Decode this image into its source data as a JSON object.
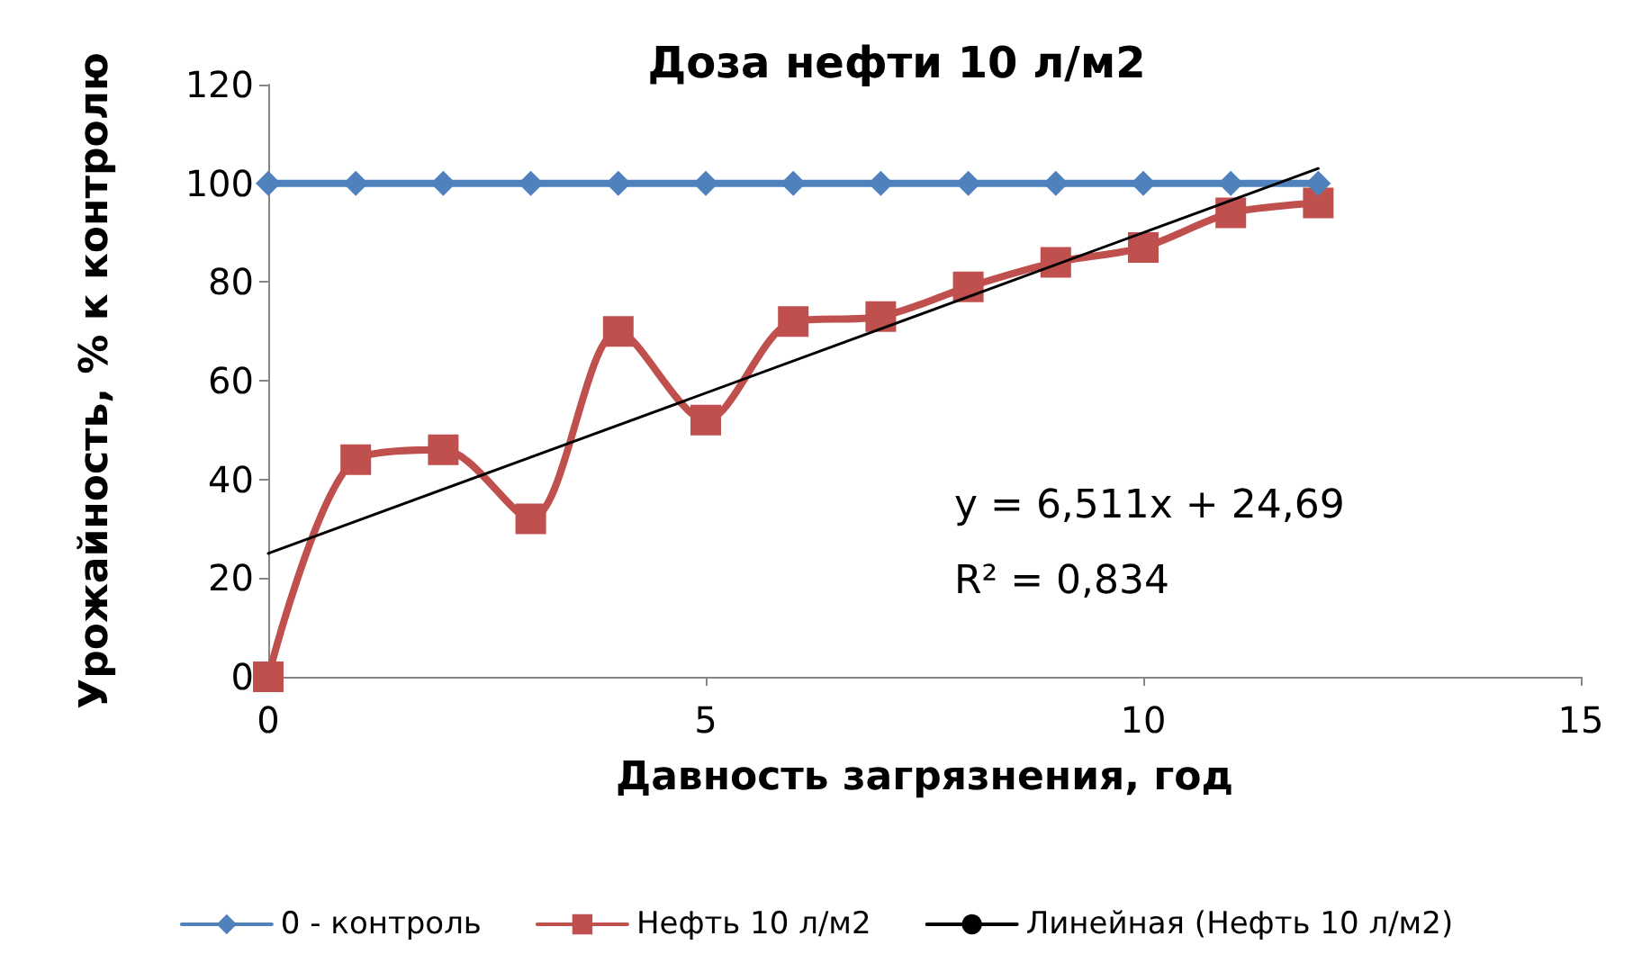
{
  "chart_data": {
    "type": "line",
    "title": "Доза нефти 10 л/м2",
    "xlabel": "Давность загрязнения, год",
    "ylabel": "Урожайность, % к контролю",
    "x": [
      0,
      1,
      2,
      3,
      4,
      5,
      6,
      7,
      8,
      9,
      10,
      11,
      12
    ],
    "series": [
      {
        "name": "0 - контроль",
        "color": "#4f81bd",
        "marker": "diamond",
        "values": [
          100,
          100,
          100,
          100,
          100,
          100,
          100,
          100,
          100,
          100,
          100,
          100,
          100
        ]
      },
      {
        "name": "Нефть 10 л/м2",
        "color": "#c0504d",
        "marker": "square",
        "values": [
          0,
          44,
          46,
          32,
          70,
          52,
          72,
          73,
          79,
          84,
          87,
          94,
          96
        ]
      },
      {
        "name": "Линейная (Нефть 10 л/м2)",
        "color": "#000000",
        "marker": "none",
        "x": [
          0,
          12
        ],
        "values": [
          25,
          103
        ]
      }
    ],
    "annotations": [
      "y = 6,511x + 24,69",
      "R² = 0,834"
    ],
    "xlim": [
      0,
      15
    ],
    "xticks": [
      0,
      5,
      10,
      15
    ],
    "ylim": [
      0,
      120
    ],
    "yticks": [
      0,
      20,
      40,
      60,
      80,
      100,
      120
    ],
    "grid": false,
    "legend": "bottom"
  }
}
